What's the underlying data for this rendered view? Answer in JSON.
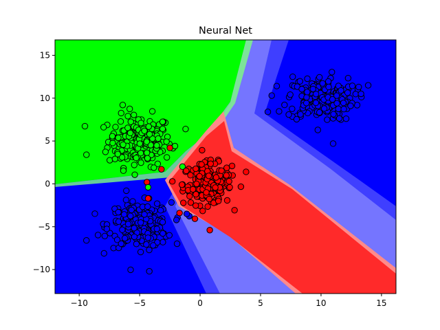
{
  "chart_data": {
    "type": "scatter",
    "title": "Neural Net",
    "xlabel": "",
    "ylabel": "",
    "xlim": [
      -12,
      16.2
    ],
    "ylim": [
      -12.8,
      16.8
    ],
    "xticks": [
      -10,
      -5,
      0,
      5,
      10,
      15
    ],
    "yticks": [
      -10,
      -5,
      0,
      5,
      10,
      15
    ],
    "xtick_labels": [
      "−10",
      "−5",
      "0",
      "5",
      "10",
      "15"
    ],
    "ytick_labels": [
      "−10",
      "−5",
      "0",
      "5",
      "10",
      "15"
    ],
    "grid": false,
    "legend": "none",
    "background": "decision regions",
    "region_colors": {
      "green": "#00ff00",
      "red": "#ff2020",
      "blue": "#0000ff"
    },
    "clusters": [
      {
        "class": "green",
        "color": "#00ff00",
        "center": [
          -5.0,
          5.0
        ],
        "spread": [
          1.3,
          1.5
        ],
        "count": 200
      },
      {
        "class": "red",
        "color": "#ff0000",
        "center": [
          0.6,
          0.0
        ],
        "spread": [
          1.0,
          1.2
        ],
        "count": 200
      },
      {
        "class": "blue",
        "color": "#0000ff",
        "center": [
          -5.0,
          -4.8
        ],
        "spread": [
          1.3,
          1.3
        ],
        "count": 200
      },
      {
        "class": "blue",
        "color": "#0000ff",
        "center": [
          10.0,
          10.0
        ],
        "spread": [
          1.4,
          1.3
        ],
        "count": 200
      }
    ],
    "outliers": [
      {
        "x": 3.8,
        "y": 1.4,
        "class": "red"
      },
      {
        "x": 0.8,
        "y": -5.4,
        "class": "red"
      },
      {
        "x": -3.2,
        "y": 1.7,
        "class": "red"
      },
      {
        "x": -4.4,
        "y": 0.2,
        "class": "red"
      },
      {
        "x": -4.3,
        "y": -1.7,
        "class": "red"
      },
      {
        "x": -2.5,
        "y": 4.2,
        "class": "red"
      },
      {
        "x": -1.7,
        "y": -3.4,
        "class": "red"
      },
      {
        "x": -4.3,
        "y": -0.4,
        "class": "green"
      },
      {
        "x": -6.1,
        "y": -0.8,
        "class": "blue"
      },
      {
        "x": -1.1,
        "y": -3.5,
        "class": "blue"
      },
      {
        "x": 11.0,
        "y": 4.7,
        "class": "blue"
      },
      {
        "x": -4.2,
        "y": -10.2,
        "class": "blue"
      },
      {
        "x": 13.9,
        "y": 11.5,
        "class": "blue"
      },
      {
        "x": 5.6,
        "y": 8.4,
        "class": "blue"
      },
      {
        "x": -9.4,
        "y": 3.4,
        "class": "green"
      },
      {
        "x": -1.2,
        "y": 6.4,
        "class": "green"
      },
      {
        "x": -6.4,
        "y": 9.2,
        "class": "green"
      },
      {
        "x": -9.4,
        "y": -6.6,
        "class": "blue"
      }
    ]
  }
}
